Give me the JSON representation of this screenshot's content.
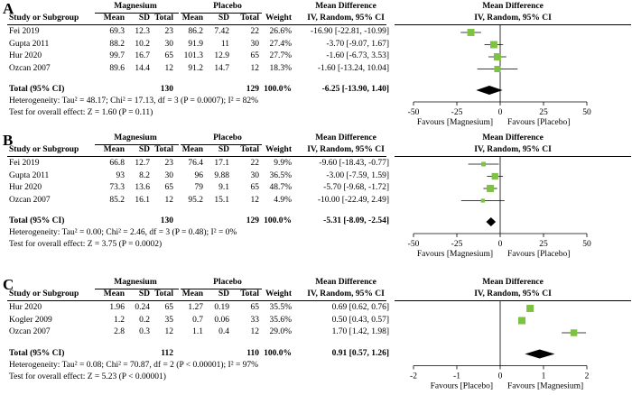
{
  "chart_data": [
    {
      "type": "forest",
      "panel_label": "A",
      "group1": "Magnesium",
      "group2": "Placebo",
      "effect_header": "Mean Difference",
      "effect_subheader": "IV, Random, 95% CI",
      "columns": {
        "study": "Study or Subgroup",
        "mean": "Mean",
        "sd": "SD",
        "total": "Total",
        "weight": "Weight"
      },
      "studies": [
        {
          "name": "Fei 2019",
          "mean1": "69.3",
          "sd1": "12.3",
          "n1": "23",
          "mean2": "86.2",
          "sd2": "7.42",
          "n2": "22",
          "weight": "26.6%",
          "ci_text": "-16.90 [-22.81, -10.99]",
          "md": -16.9,
          "lo": -22.81,
          "hi": -10.99,
          "w": 26.6
        },
        {
          "name": "Gupta 2011",
          "mean1": "88.2",
          "sd1": "10.2",
          "n1": "30",
          "mean2": "91.9",
          "sd2": "11",
          "n2": "30",
          "weight": "27.4%",
          "ci_text": "-3.70 [-9.07, 1.67]",
          "md": -3.7,
          "lo": -9.07,
          "hi": 1.67,
          "w": 27.4
        },
        {
          "name": "Hur 2020",
          "mean1": "99.7",
          "sd1": "16.7",
          "n1": "65",
          "mean2": "101.3",
          "sd2": "12.9",
          "n2": "65",
          "weight": "27.7%",
          "ci_text": "-1.60 [-6.73, 3.53]",
          "md": -1.6,
          "lo": -6.73,
          "hi": 3.53,
          "w": 27.7
        },
        {
          "name": "Ozcan 2007",
          "mean1": "89.6",
          "sd1": "14.4",
          "n1": "12",
          "mean2": "91.2",
          "sd2": "14.7",
          "n2": "12",
          "weight": "18.3%",
          "ci_text": "-1.60 [-13.24, 10.04]",
          "md": -1.6,
          "lo": -13.24,
          "hi": 10.04,
          "w": 18.3
        }
      ],
      "total": {
        "label": "Total (95% CI)",
        "n1": "130",
        "n2": "129",
        "weight": "100.0%",
        "ci_text": "-6.25 [-13.90, 1.40]",
        "md": -6.25,
        "lo": -13.9,
        "hi": 1.4
      },
      "heterogeneity": "Heterogeneity: Tau² = 48.17; Chi² = 17.13, df = 3 (P = 0.0007); I² = 82%",
      "overall_effect": "Test for overall effect: Z = 1.60 (P = 0.11)",
      "xlim": [
        -50,
        50
      ],
      "ticks": [
        -50,
        -25,
        0,
        25,
        50
      ],
      "tick_labels": [
        "-50",
        "-25",
        "0",
        "25",
        "50"
      ],
      "favours_left": "Favours [Magnesium]",
      "favours_right": "Favours [Placebo]"
    },
    {
      "type": "forest",
      "panel_label": "B",
      "group1": "Magnesium",
      "group2": "Placebo",
      "effect_header": "Mean Difference",
      "effect_subheader": "IV, Random, 95% CI",
      "columns": {
        "study": "Study or Subgroup",
        "mean": "Mean",
        "sd": "SD",
        "total": "Total",
        "weight": "Weight"
      },
      "studies": [
        {
          "name": "Fei 2019",
          "mean1": "66.8",
          "sd1": "12.7",
          "n1": "23",
          "mean2": "76.4",
          "sd2": "17.1",
          "n2": "22",
          "weight": "9.9%",
          "ci_text": "-9.60 [-18.43, -0.77]",
          "md": -9.6,
          "lo": -18.43,
          "hi": -0.77,
          "w": 9.9
        },
        {
          "name": "Gupta 2011",
          "mean1": "93",
          "sd1": "8.2",
          "n1": "30",
          "mean2": "96",
          "sd2": "9.88",
          "n2": "30",
          "weight": "36.5%",
          "ci_text": "-3.00 [-7.59, 1.59]",
          "md": -3.0,
          "lo": -7.59,
          "hi": 1.59,
          "w": 36.5
        },
        {
          "name": "Hur 2020",
          "mean1": "73.3",
          "sd1": "13.6",
          "n1": "65",
          "mean2": "79",
          "sd2": "9.1",
          "n2": "65",
          "weight": "48.7%",
          "ci_text": "-5.70 [-9.68, -1.72]",
          "md": -5.7,
          "lo": -9.68,
          "hi": -1.72,
          "w": 48.7
        },
        {
          "name": "Ozcan 2007",
          "mean1": "85.2",
          "sd1": "16.1",
          "n1": "12",
          "mean2": "95.2",
          "sd2": "15.1",
          "n2": "12",
          "weight": "4.9%",
          "ci_text": "-10.00 [-22.49, 2.49]",
          "md": -10.0,
          "lo": -22.49,
          "hi": 2.49,
          "w": 4.9
        }
      ],
      "total": {
        "label": "Total (95% CI)",
        "n1": "130",
        "n2": "129",
        "weight": "100.0%",
        "ci_text": "-5.31 [-8.09, -2.54]",
        "md": -5.31,
        "lo": -8.09,
        "hi": -2.54
      },
      "heterogeneity": "Heterogeneity: Tau² = 0.00; Chi² = 2.46, df = 3 (P = 0.48); I² = 0%",
      "overall_effect": "Test for overall effect: Z = 3.75 (P = 0.0002)",
      "xlim": [
        -50,
        50
      ],
      "ticks": [
        -50,
        -25,
        0,
        25,
        50
      ],
      "tick_labels": [
        "-50",
        "-25",
        "0",
        "25",
        "50"
      ],
      "favours_left": "Favours [Magnesium]",
      "favours_right": "Favours [Placebo]"
    },
    {
      "type": "forest",
      "panel_label": "C",
      "group1": "Magnesium",
      "group2": "Placebo",
      "effect_header": "Mean Difference",
      "effect_subheader": "IV, Random, 95% CI",
      "columns": {
        "study": "Study or Subgroup",
        "mean": "Mean",
        "sd": "SD",
        "total": "Total",
        "weight": "Weight"
      },
      "studies": [
        {
          "name": "Hur 2020",
          "mean1": "1.96",
          "sd1": "0.24",
          "n1": "65",
          "mean2": "1.27",
          "sd2": "0.19",
          "n2": "65",
          "weight": "35.5%",
          "ci_text": "0.69 [0.62, 0.76]",
          "md": 0.69,
          "lo": 0.62,
          "hi": 0.76,
          "w": 35.5
        },
        {
          "name": "Kogler 2009",
          "mean1": "1.2",
          "sd1": "0.2",
          "n1": "35",
          "mean2": "0.7",
          "sd2": "0.06",
          "n2": "33",
          "weight": "35.6%",
          "ci_text": "0.50 [0.43, 0.57]",
          "md": 0.5,
          "lo": 0.43,
          "hi": 0.57,
          "w": 35.6
        },
        {
          "name": "Ozcan 2007",
          "mean1": "2.8",
          "sd1": "0.3",
          "n1": "12",
          "mean2": "1.1",
          "sd2": "0.4",
          "n2": "12",
          "weight": "29.0%",
          "ci_text": "1.70 [1.42, 1.98]",
          "md": 1.7,
          "lo": 1.42,
          "hi": 1.98,
          "w": 29.0
        }
      ],
      "total": {
        "label": "Total (95% CI)",
        "n1": "112",
        "n2": "110",
        "weight": "100.0%",
        "ci_text": "0.91 [0.57, 1.26]",
        "md": 0.91,
        "lo": 0.57,
        "hi": 1.26
      },
      "heterogeneity": "Heterogeneity: Tau² = 0.08; Chi² = 70.87, df = 2 (P < 0.00001); I² = 97%",
      "overall_effect": "Test for overall effect: Z = 5.23 (P < 0.00001)",
      "xlim": [
        -2,
        2
      ],
      "ticks": [
        -2,
        -1,
        0,
        1,
        2
      ],
      "tick_labels": [
        "-2",
        "-1",
        "0",
        "1",
        "2"
      ],
      "favours_left": "Favours [Placebo]",
      "favours_right": "Favours [Magnesium]"
    }
  ],
  "colors": {
    "study_marker": "#7dc242",
    "total_marker": "#000000",
    "ci_line": "#000000"
  }
}
